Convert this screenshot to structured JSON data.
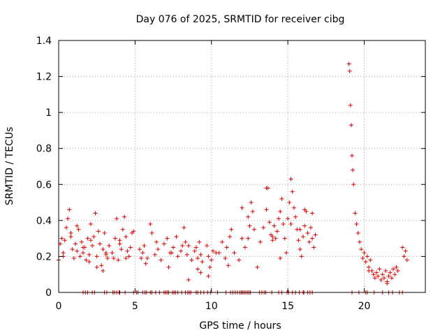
{
  "chart_data": {
    "type": "scatter",
    "title": "Day 076 of 2025, SRMTID for receiver cibg",
    "xlabel": "GPS time / hours",
    "ylabel": "SRMTID / TECUs",
    "xlim": [
      0,
      24
    ],
    "ylim": [
      0,
      1.4
    ],
    "xticks": [
      0,
      5,
      10,
      15,
      20
    ],
    "xtick_labels": [
      "0",
      "5",
      "10",
      "15",
      "20"
    ],
    "yticks": [
      0,
      0.2,
      0.4,
      0.6,
      0.8,
      1.0,
      1.2,
      1.4
    ],
    "ytick_labels": [
      "0",
      "0.2",
      "0.4",
      "0.6",
      "0.8",
      "1",
      "1.2",
      "1.4"
    ],
    "grid": true,
    "marker": "+",
    "color": "#dd0000",
    "series": [
      {
        "name": "SRMTID",
        "x": [
          0.0,
          0.1,
          0.2,
          0.3,
          0.4,
          0.5,
          0.6,
          0.7,
          0.8,
          0.9,
          1.0,
          1.1,
          1.2,
          1.3,
          1.4,
          1.5,
          1.6,
          1.7,
          1.8,
          1.9,
          2.0,
          2.1,
          2.2,
          2.3,
          2.4,
          2.5,
          2.6,
          2.7,
          2.8,
          2.9,
          3.0,
          3.1,
          3.2,
          3.3,
          3.5,
          3.7,
          3.8,
          3.9,
          4.0,
          4.1,
          4.2,
          4.3,
          4.4,
          4.5,
          4.6,
          4.7,
          4.8,
          5.3,
          5.4,
          5.5,
          5.6,
          5.8,
          6.1,
          6.3,
          6.5,
          6.7,
          6.9,
          7.1,
          7.3,
          7.5,
          7.7,
          7.8,
          8.0,
          8.2,
          8.3,
          8.4,
          8.5,
          8.7,
          8.9,
          9.0,
          9.1,
          9.2,
          9.3,
          9.4,
          9.7,
          9.8,
          9.9,
          10.0,
          10.1,
          10.5,
          10.7,
          10.9,
          11.0,
          11.2,
          11.5,
          11.8,
          12.0,
          12.2,
          12.4,
          12.5,
          12.6,
          12.7,
          12.8,
          13.2,
          13.4,
          13.6,
          13.7,
          13.8,
          13.9,
          14.0,
          14.1,
          14.2,
          14.3,
          14.4,
          14.5,
          14.6,
          14.7,
          14.8,
          14.9,
          15.0,
          15.1,
          15.2,
          15.3,
          15.4,
          15.5,
          15.6,
          15.7,
          15.8,
          15.9,
          16.0,
          16.1,
          16.2,
          16.3,
          16.4,
          16.5,
          16.6,
          16.7,
          16.8,
          19.0,
          19.05,
          19.1,
          19.15,
          19.2,
          19.25,
          19.3,
          19.4,
          19.5,
          19.6,
          19.7,
          19.8,
          19.9,
          20.0,
          20.1,
          20.2,
          20.3,
          20.4,
          20.5,
          20.6,
          20.7,
          20.8,
          20.9,
          21.0,
          21.1,
          21.2,
          21.3,
          21.4,
          21.5,
          21.6,
          21.7,
          21.8,
          21.9,
          22.0,
          22.1,
          22.2,
          22.5,
          22.6,
          22.7,
          22.8,
          0.3,
          0.8,
          1.2,
          2.0,
          2.5,
          3.1,
          4.0,
          4.4,
          6.0,
          7.2,
          8.1,
          9.3,
          11.1,
          13.6,
          14.0,
          15.2,
          16.1,
          20.3,
          21.5,
          1.6,
          2.1,
          2.9,
          3.6,
          4.9,
          5.7,
          6.4,
          7.4,
          8.5,
          9.1,
          9.8,
          10.3,
          11.3,
          12.0,
          12.4,
          13.0,
          14.5,
          15.8,
          16.6
        ],
        "y": [
          0.18,
          0.27,
          0.3,
          0.22,
          0.29,
          0.36,
          0.41,
          0.46,
          0.31,
          0.24,
          0.19,
          0.27,
          0.23,
          0.35,
          0.2,
          0.28,
          0.22,
          0.25,
          0.18,
          0.3,
          0.21,
          0.38,
          0.26,
          0.31,
          0.44,
          0.2,
          0.34,
          0.27,
          0.15,
          0.24,
          0.33,
          0.21,
          0.19,
          0.26,
          0.22,
          0.3,
          0.41,
          0.18,
          0.27,
          0.24,
          0.35,
          0.42,
          0.31,
          0.23,
          0.2,
          0.25,
          0.33,
          0.24,
          0.19,
          0.22,
          0.26,
          0.19,
          0.33,
          0.21,
          0.24,
          0.18,
          0.27,
          0.3,
          0.22,
          0.25,
          0.31,
          0.2,
          0.23,
          0.36,
          0.28,
          0.21,
          0.26,
          0.18,
          0.23,
          0.25,
          0.19,
          0.28,
          0.21,
          0.17,
          0.26,
          0.2,
          0.14,
          0.18,
          0.23,
          0.22,
          0.28,
          0.19,
          0.25,
          0.31,
          0.22,
          0.18,
          0.3,
          0.25,
          0.42,
          0.37,
          0.5,
          0.45,
          0.35,
          0.28,
          0.36,
          0.46,
          0.58,
          0.39,
          0.32,
          0.29,
          0.37,
          0.3,
          0.34,
          0.41,
          0.45,
          0.52,
          0.38,
          0.3,
          0.22,
          0.41,
          0.5,
          0.63,
          0.56,
          0.47,
          0.42,
          0.35,
          0.29,
          0.24,
          0.2,
          0.31,
          0.37,
          0.45,
          0.33,
          0.28,
          0.36,
          0.3,
          0.25,
          0.32,
          1.27,
          1.23,
          1.04,
          0.93,
          0.76,
          0.68,
          0.6,
          0.44,
          0.38,
          0.33,
          0.28,
          0.24,
          0.19,
          0.22,
          0.17,
          0.2,
          0.14,
          0.18,
          0.12,
          0.1,
          0.08,
          0.11,
          0.09,
          0.13,
          0.07,
          0.1,
          0.08,
          0.12,
          0.06,
          0.09,
          0.11,
          0.08,
          0.13,
          0.1,
          0.14,
          0.12,
          0.25,
          0.2,
          0.23,
          0.18,
          0.2,
          0.33,
          0.37,
          0.17,
          0.14,
          0.22,
          0.29,
          0.19,
          0.38,
          0.14,
          0.26,
          0.11,
          0.15,
          0.58,
          0.31,
          0.38,
          0.46,
          0.12,
          0.05,
          0.25,
          0.29,
          0.12,
          0.19,
          0.34,
          0.16,
          0.28,
          0.22,
          0.07,
          0.13,
          0.09,
          0.22,
          0.35,
          0.47,
          0.3,
          0.14,
          0.19,
          0.35,
          0.44
        ],
        "zero_x": [
          1.6,
          1.75,
          1.9,
          2.2,
          2.35,
          3.0,
          3.15,
          3.55,
          3.65,
          3.8,
          3.95,
          4.0,
          4.35,
          4.9,
          5.1,
          5.2,
          5.5,
          5.65,
          5.75,
          6.0,
          6.1,
          6.35,
          6.6,
          6.9,
          7.0,
          7.1,
          7.2,
          7.45,
          7.55,
          7.65,
          7.8,
          8.05,
          8.3,
          8.45,
          8.55,
          8.65,
          9.0,
          9.1,
          9.3,
          9.5,
          9.75,
          9.95,
          10.4,
          10.95,
          11.25,
          11.4,
          11.55,
          11.7,
          11.85,
          11.95,
          12.05,
          12.15,
          12.25,
          12.35,
          12.45,
          12.55,
          13.15,
          13.3,
          13.45,
          13.55,
          13.95,
          14.4,
          14.6,
          14.95,
          15.05,
          15.3,
          15.5,
          15.75,
          16.0,
          16.05,
          16.3,
          16.45,
          16.6,
          19.2,
          19.65,
          20.1,
          20.2,
          20.65,
          21.2,
          21.6,
          21.85,
          22.3,
          22.5
        ]
      }
    ]
  }
}
